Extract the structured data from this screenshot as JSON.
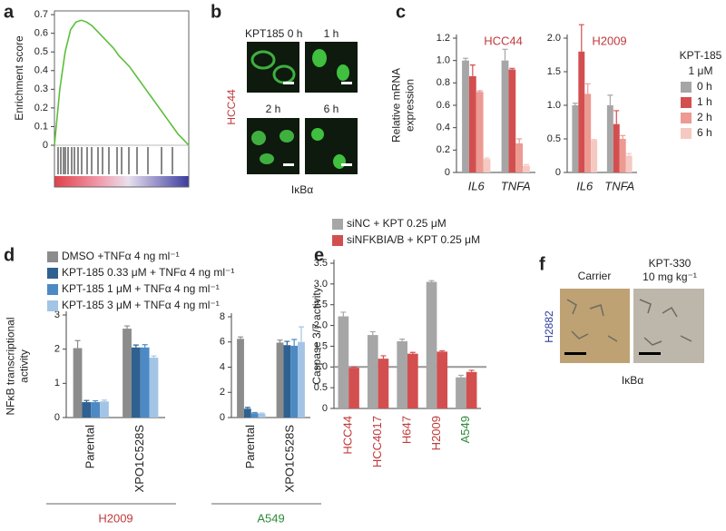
{
  "panel_labels": [
    "a",
    "b",
    "c",
    "d",
    "e",
    "f"
  ],
  "images": {
    "b": {
      "time_labels": [
        "KPT185 0 h",
        "1 h",
        "2 h",
        "6 h"
      ],
      "row_label": "HCC44",
      "stain": "IκBα"
    },
    "f": {
      "conditions": [
        "Carrier",
        "KPT-330"
      ],
      "dose": "10 mg kg⁻¹",
      "row_label": "H2882",
      "stain": "IκBα"
    }
  },
  "chart_data": [
    {
      "type": "line",
      "y_label": [
        "Enrichment score"
      ],
      "color": "#5cbf3a",
      "values": [
        0,
        0.3,
        0.5,
        0.62,
        0.66,
        0.67,
        0.66,
        0.64,
        0.61,
        0.58,
        0.55,
        0.52,
        0.48,
        0.45,
        0.42,
        0.38,
        0.34,
        0.3,
        0.26,
        0.22,
        0.18,
        0.14,
        0.1,
        0.06,
        0.03,
        0
      ],
      "ylim": [
        0,
        0.72
      ],
      "yticks": [
        0,
        0.1,
        0.2,
        0.3,
        0.4,
        0.5,
        0.6,
        0.7
      ]
    },
    {
      "type": "bar",
      "title": "HCC44",
      "title_color": "#c0393b",
      "y_label": [
        "Relative mRNA",
        "expression"
      ],
      "categories": [
        "IL6",
        "TNFA"
      ],
      "category_italic": true,
      "series": [
        {
          "color": "#a6a6a6",
          "values": [
            1.0,
            1.0
          ],
          "errors": [
            0.02,
            0.1
          ]
        },
        {
          "color": "#d34f4f",
          "values": [
            0.86,
            0.92
          ],
          "errors": [
            0.1,
            0.01
          ]
        },
        {
          "color": "#ec9a92",
          "values": [
            0.72,
            0.26
          ],
          "errors": [
            0.01,
            0.04
          ]
        },
        {
          "color": "#f5c9c2",
          "values": [
            0.12,
            0.06
          ],
          "errors": [
            0.01,
            0.01
          ]
        }
      ],
      "ylim": [
        0,
        1.2
      ],
      "yticks": [
        0,
        0.2,
        0.4,
        0.6,
        0.8,
        {
          "value": 1,
          "label": "1.0"
        },
        1.2
      ]
    },
    {
      "type": "bar",
      "title": "H2009",
      "title_color": "#c0393b",
      "categories": [
        "IL6",
        "TNFA"
      ],
      "category_italic": true,
      "legend_title": [
        "KPT-185",
        "1 μM"
      ],
      "series": [
        {
          "name": "0 h",
          "color": "#a6a6a6",
          "values": [
            1.0,
            1.0
          ],
          "errors": [
            0.03,
            0.15
          ]
        },
        {
          "name": "1 h",
          "color": "#d34f4f",
          "values": [
            1.8,
            0.72
          ],
          "errors": [
            0.4,
            0.2
          ]
        },
        {
          "name": "2 h",
          "color": "#ec9a92",
          "values": [
            1.17,
            0.5
          ],
          "errors": [
            0.15,
            0.05
          ]
        },
        {
          "name": "6 h",
          "color": "#f5c9c2",
          "values": [
            0.48,
            0.25
          ],
          "errors": [
            0.01,
            0.03
          ]
        }
      ],
      "ylim": [
        0,
        2
      ],
      "yticks": [
        0,
        0.5,
        {
          "value": 1,
          "label": "1.0"
        },
        1.5,
        {
          "value": 2,
          "label": "2.0"
        }
      ]
    },
    {
      "type": "bar",
      "y_label": [
        "NFκB transcriptional",
        "activity"
      ],
      "categories": [
        "Parental",
        "XPO1C528S"
      ],
      "group_label": "H2009",
      "group_color": "#c0393b",
      "series": [
        {
          "name": "DMSO +TNFα 4 ng ml⁻¹",
          "color": "#8c8c8c",
          "values": [
            2.03,
            2.6
          ],
          "errors": [
            0.22,
            0.08
          ]
        },
        {
          "name": "KPT-185 0.33 μM + TNFα 4 ng ml⁻¹",
          "color": "#2f6190",
          "values": [
            0.45,
            2.05
          ],
          "errors": [
            0.05,
            0.07
          ]
        },
        {
          "name": "KPT-185 1 μM + TNFα 4 ng ml⁻¹",
          "color": "#4d8ac4",
          "values": [
            0.45,
            2.05
          ],
          "errors": [
            0.04,
            0.08
          ]
        },
        {
          "name": "KPT-185 3 μM + TNFα 4 ng ml⁻¹",
          "color": "#a3c4e4",
          "values": [
            0.47,
            1.75
          ],
          "errors": [
            0.04,
            0.05
          ]
        }
      ],
      "ylim": [
        0,
        3
      ],
      "yticks": [
        0,
        1,
        2,
        3
      ]
    },
    {
      "type": "bar",
      "categories": [
        "Parental",
        "XPO1C528S"
      ],
      "group_label": "A549",
      "group_color": "#2f8a3a",
      "series": [
        {
          "color": "#8c8c8c",
          "values": [
            6.25,
            5.95
          ],
          "errors": [
            0.15,
            0.2
          ]
        },
        {
          "color": "#2f6190",
          "values": [
            0.7,
            5.75
          ],
          "errors": [
            0.1,
            0.3
          ]
        },
        {
          "color": "#4d8ac4",
          "values": [
            0.35,
            5.7
          ],
          "errors": [
            0.05,
            0.5
          ]
        },
        {
          "color": "#a3c4e4",
          "values": [
            0.3,
            6.0
          ],
          "errors": [
            0.05,
            1.2
          ]
        }
      ],
      "ylim": [
        0,
        8
      ],
      "yticks": [
        0,
        2,
        4,
        6,
        8
      ]
    },
    {
      "type": "bar",
      "y_label": [
        "Caspase 3/7 activity"
      ],
      "categories": [
        "HCC44",
        "HCC4017",
        "H647",
        "H2009",
        "A549"
      ],
      "category_colors": [
        "#c0393b",
        "#c0393b",
        "#c0393b",
        "#c0393b",
        "#2f8a3a"
      ],
      "series": [
        {
          "name": "siNC + KPT 0.25 μM",
          "color": "#a6a6a6",
          "values": [
            2.22,
            1.77,
            1.62,
            3.05,
            0.75
          ],
          "errors": [
            0.1,
            0.08,
            0.05,
            0.03,
            0.05
          ]
        },
        {
          "name": "siNFKBIA/B + KPT 0.25 μM",
          "color": "#d34f4f",
          "values": [
            0.98,
            1.2,
            1.32,
            1.37,
            0.88
          ],
          "errors": [
            0.02,
            0.07,
            0.03,
            0.02,
            0.04
          ]
        }
      ],
      "reference_line": 1,
      "ylim": [
        0,
        3.5
      ],
      "yticks": [
        0,
        0.5,
        {
          "value": 1,
          "label": "1.0"
        },
        1.5,
        {
          "value": 2,
          "label": "2.0"
        },
        2.5,
        {
          "value": 3,
          "label": "3.0"
        },
        3.5
      ]
    }
  ]
}
